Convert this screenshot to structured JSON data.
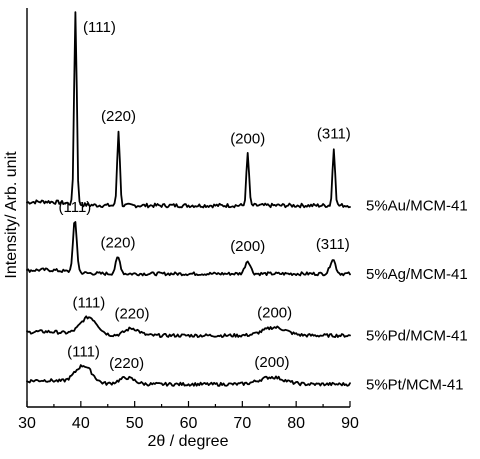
{
  "chart_data": {
    "type": "line",
    "xlabel": "2θ / degree",
    "ylabel": "Intensity/ Arb. unit",
    "xlim": [
      30,
      90
    ],
    "xticks": [
      30,
      40,
      50,
      60,
      70,
      80,
      90
    ],
    "yticks_shown": false,
    "grid": false,
    "series": [
      {
        "name": "5%Au/MCM-41",
        "baseline": 0.0,
        "offset": 6.2,
        "peaks": [
          {
            "x": 39.0,
            "height": 5.9,
            "width": 0.35,
            "label": "(111)"
          },
          {
            "x": 47.0,
            "height": 2.3,
            "width": 0.35,
            "label": "(220)"
          },
          {
            "x": 71.0,
            "height": 1.6,
            "width": 0.35,
            "label": "(200)"
          },
          {
            "x": 87.0,
            "height": 1.75,
            "width": 0.35,
            "label": "(311)"
          }
        ]
      },
      {
        "name": "5%Ag/MCM-41",
        "offset": 4.1,
        "peaks": [
          {
            "x": 38.9,
            "height": 1.6,
            "width": 0.5,
            "label": "(111)"
          },
          {
            "x": 46.9,
            "height": 0.5,
            "width": 0.6,
            "label": "(220)"
          },
          {
            "x": 71.0,
            "height": 0.4,
            "width": 0.7,
            "label": "(200)"
          },
          {
            "x": 86.8,
            "height": 0.45,
            "width": 0.7,
            "label": "(311)"
          }
        ]
      },
      {
        "name": "5%Pd/MCM-41",
        "offset": 2.2,
        "peaks": [
          {
            "x": 41.5,
            "height": 0.55,
            "width": 2.2,
            "label": "(111)"
          },
          {
            "x": 49.5,
            "height": 0.22,
            "width": 1.8,
            "label": "(220)"
          },
          {
            "x": 76.0,
            "height": 0.25,
            "width": 3.0,
            "label": "(200)"
          }
        ]
      },
      {
        "name": "5%Pt/MCM-41",
        "offset": 0.7,
        "peaks": [
          {
            "x": 40.5,
            "height": 0.55,
            "width": 2.2,
            "label": "(111)"
          },
          {
            "x": 48.5,
            "height": 0.2,
            "width": 2.0,
            "label": "(220)"
          },
          {
            "x": 75.5,
            "height": 0.22,
            "width": 3.2,
            "label": "(200)"
          }
        ]
      }
    ]
  }
}
